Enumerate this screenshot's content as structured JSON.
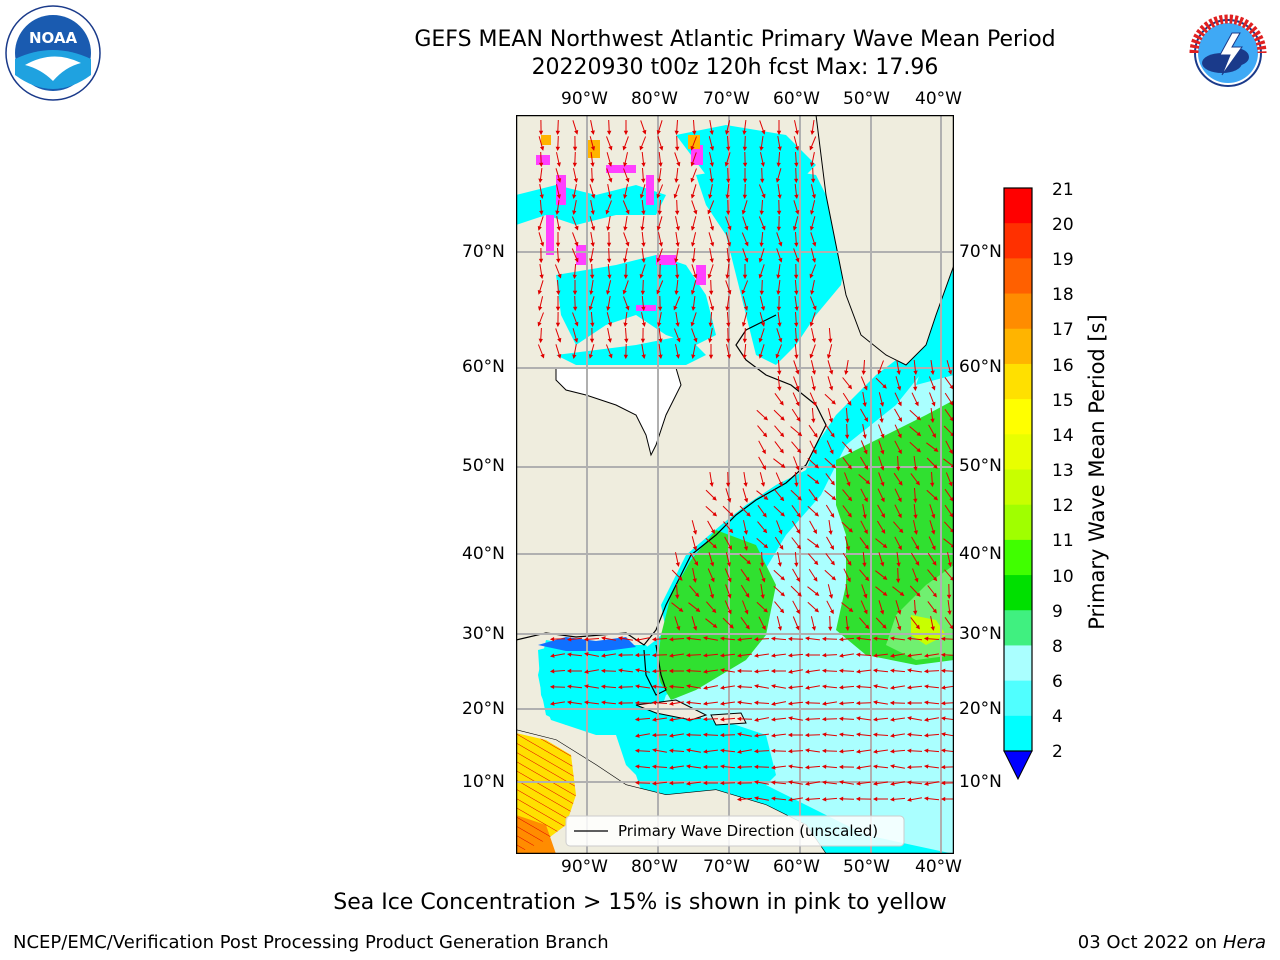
{
  "header": {
    "title": "GEFS MEAN Northwest Atlantic Primary Wave Mean Period",
    "subtitle": "20220930 t00z 120h fcst   Max: 17.96"
  },
  "logos": {
    "noaa_text": "NOAA",
    "noaa_ring": "NATIONAL OCEANIC AND ATMOSPHERIC ADMINISTRATION · U.S. DEPARTMENT OF COMMERCE",
    "nws_ring": "NATIONAL WEATHER SERVICE"
  },
  "map": {
    "lon_labels": [
      "90°W",
      "80°W",
      "70°W",
      "60°W",
      "50°W",
      "40°W"
    ],
    "lat_labels": [
      "70°N",
      "60°N",
      "50°N",
      "40°N",
      "30°N",
      "20°N",
      "10°N"
    ],
    "legend_label": "Primary Wave Direction (unscaled)",
    "colors": {
      "land": "#efedde",
      "ocean_low": "#00ffff",
      "ocean_mid": "#aaffff",
      "ocean_green": "#40e040",
      "arrows": "#e00000",
      "ice": "#ff40ff"
    }
  },
  "colorbar": {
    "label": "Primary Wave Mean Period [s]",
    "ticks": [
      "21",
      "20",
      "19",
      "18",
      "17",
      "16",
      "15",
      "14",
      "13",
      "12",
      "11",
      "10",
      "9",
      "8",
      "6",
      "4",
      "2"
    ],
    "colors": [
      "#ff0000",
      "#ff3000",
      "#ff6000",
      "#ff8c00",
      "#ffb400",
      "#ffe000",
      "#ffff00",
      "#e8ff00",
      "#c8ff00",
      "#a0ff00",
      "#40ff00",
      "#00e000",
      "#40f080",
      "#aaffff",
      "#50ffff",
      "#00ffff",
      "#0080ff",
      "#0000ff"
    ]
  },
  "footer": {
    "caption": "Sea Ice Concentration > 15% is shown in pink to yellow",
    "branch": "NCEP/EMC/Verification Post Processing Product Generation Branch",
    "date": "03 Oct 2022 on ",
    "machine": "Hera"
  }
}
